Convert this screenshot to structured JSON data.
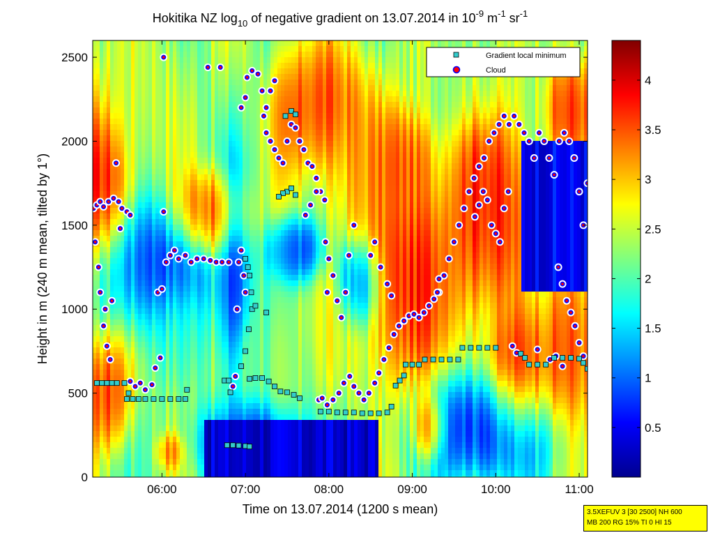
{
  "chart_data": {
    "type": "heatmap",
    "title": {
      "prefix": "Hokitika NZ log",
      "sub": "10",
      "middle": " of negative gradient on 13.07.2014 in 10",
      "exp1": "-9",
      "unit1": " m",
      "exp2": "-1",
      "unit2": " sr",
      "exp3": "-1"
    },
    "xlabel": "Time on 13.07.2014 (1200 s mean)",
    "ylabel": "Height in m (240 m mean, tilted by 1°)",
    "x_ticks": [
      "06:00",
      "07:00",
      "08:00",
      "09:00",
      "10:00",
      "11:00"
    ],
    "x_tick_hours": [
      6,
      7,
      8,
      9,
      10,
      11
    ],
    "xlim_hours": [
      5.17,
      11.1
    ],
    "y_ticks": [
      0,
      500,
      1000,
      1500,
      2000,
      2500
    ],
    "ylim": [
      0,
      2600
    ],
    "colorbar": {
      "ticks": [
        "0.5",
        "1",
        "1.5",
        "2",
        "2.5",
        "3",
        "3.5",
        "4"
      ],
      "tick_values": [
        0.5,
        1,
        1.5,
        2,
        2.5,
        3,
        3.5,
        4
      ],
      "range": [
        0,
        4.4
      ],
      "colormap": "jet"
    },
    "legend": {
      "position": "top-right",
      "entries": [
        {
          "label": "Gradient local minimum",
          "marker": "square",
          "color": "#33cccc"
        },
        {
          "label": "Cloud",
          "marker": "circle",
          "color": "#ff0000"
        }
      ]
    },
    "series": [
      {
        "name": "Gradient local minimum",
        "points": [
          [
            5.22,
            560
          ],
          [
            5.28,
            560
          ],
          [
            5.34,
            560
          ],
          [
            5.4,
            560
          ],
          [
            5.46,
            560
          ],
          [
            5.55,
            560
          ],
          [
            5.58,
            465
          ],
          [
            5.65,
            465
          ],
          [
            5.72,
            465
          ],
          [
            5.8,
            465
          ],
          [
            5.9,
            465
          ],
          [
            6.0,
            465
          ],
          [
            6.1,
            465
          ],
          [
            6.2,
            465
          ],
          [
            6.28,
            465
          ],
          [
            5.6,
            500
          ],
          [
            6.3,
            520
          ],
          [
            6.75,
            575
          ],
          [
            6.8,
            575
          ],
          [
            6.82,
            505
          ],
          [
            7.05,
            585
          ],
          [
            7.12,
            590
          ],
          [
            7.2,
            590
          ],
          [
            7.28,
            570
          ],
          [
            7.35,
            540
          ],
          [
            7.42,
            510
          ],
          [
            7.5,
            505
          ],
          [
            7.58,
            490
          ],
          [
            7.65,
            470
          ],
          [
            6.78,
            190
          ],
          [
            6.85,
            190
          ],
          [
            6.92,
            188
          ],
          [
            7.0,
            185
          ],
          [
            7.05,
            182
          ],
          [
            7.0,
            1300
          ],
          [
            7.03,
            1250
          ],
          [
            7.05,
            1200
          ],
          [
            7.07,
            1100
          ],
          [
            7.04,
            880
          ],
          [
            7.0,
            750
          ],
          [
            6.95,
            660
          ],
          [
            7.08,
            1000
          ],
          [
            7.12,
            1020
          ],
          [
            7.25,
            980
          ],
          [
            7.5,
            1700
          ],
          [
            7.55,
            1720
          ],
          [
            7.6,
            1680
          ],
          [
            7.45,
            1690
          ],
          [
            7.4,
            1670
          ],
          [
            7.48,
            2150
          ],
          [
            7.55,
            2180
          ],
          [
            7.6,
            2160
          ],
          [
            7.9,
            390
          ],
          [
            8.0,
            390
          ],
          [
            8.1,
            385
          ],
          [
            8.2,
            385
          ],
          [
            8.3,
            385
          ],
          [
            8.4,
            380
          ],
          [
            8.5,
            380
          ],
          [
            8.6,
            380
          ],
          [
            8.7,
            385
          ],
          [
            8.75,
            420
          ],
          [
            8.8,
            545
          ],
          [
            8.85,
            575
          ],
          [
            8.9,
            605
          ],
          [
            8.92,
            670
          ],
          [
            9.0,
            670
          ],
          [
            9.08,
            670
          ],
          [
            9.15,
            700
          ],
          [
            9.25,
            700
          ],
          [
            9.35,
            700
          ],
          [
            9.45,
            700
          ],
          [
            9.55,
            700
          ],
          [
            9.6,
            770
          ],
          [
            9.7,
            770
          ],
          [
            9.8,
            770
          ],
          [
            9.9,
            770
          ],
          [
            10.0,
            770
          ],
          [
            10.3,
            735
          ],
          [
            10.35,
            710
          ],
          [
            10.4,
            670
          ],
          [
            10.5,
            670
          ],
          [
            10.6,
            670
          ],
          [
            10.7,
            710
          ],
          [
            10.8,
            710
          ],
          [
            10.9,
            710
          ],
          [
            11.0,
            705
          ],
          [
            11.05,
            680
          ],
          [
            11.1,
            645
          ]
        ]
      },
      {
        "name": "Cloud",
        "points": [
          [
            5.18,
            1600
          ],
          [
            5.22,
            1620
          ],
          [
            5.26,
            1640
          ],
          [
            5.3,
            1610
          ],
          [
            5.36,
            1640
          ],
          [
            5.42,
            1660
          ],
          [
            5.48,
            1640
          ],
          [
            5.52,
            1600
          ],
          [
            5.58,
            1580
          ],
          [
            5.62,
            1560
          ],
          [
            5.2,
            1400
          ],
          [
            5.24,
            1250
          ],
          [
            5.26,
            1100
          ],
          [
            5.3,
            900
          ],
          [
            5.34,
            780
          ],
          [
            5.38,
            700
          ],
          [
            5.32,
            1000
          ],
          [
            5.4,
            1050
          ],
          [
            5.5,
            1480
          ],
          [
            5.45,
            1870
          ],
          [
            5.62,
            570
          ],
          [
            5.68,
            540
          ],
          [
            5.74,
            560
          ],
          [
            5.8,
            520
          ],
          [
            5.88,
            550
          ],
          [
            5.95,
            1100
          ],
          [
            6.0,
            1120
          ],
          [
            6.05,
            1280
          ],
          [
            6.1,
            1320
          ],
          [
            6.15,
            1350
          ],
          [
            6.2,
            1300
          ],
          [
            6.28,
            1320
          ],
          [
            6.35,
            1280
          ],
          [
            6.42,
            1300
          ],
          [
            6.5,
            1300
          ],
          [
            6.58,
            1290
          ],
          [
            6.65,
            1280
          ],
          [
            6.72,
            1280
          ],
          [
            6.8,
            1280
          ],
          [
            6.02,
            1580
          ],
          [
            5.98,
            710
          ],
          [
            5.92,
            650
          ],
          [
            6.02,
            2500
          ],
          [
            6.55,
            2440
          ],
          [
            6.7,
            2440
          ],
          [
            6.9,
            1000
          ],
          [
            6.92,
            1280
          ],
          [
            6.95,
            1350
          ],
          [
            6.98,
            1200
          ],
          [
            7.0,
            1100
          ],
          [
            6.85,
            540
          ],
          [
            6.88,
            600
          ],
          [
            6.95,
            2200
          ],
          [
            7.0,
            2260
          ],
          [
            7.02,
            2380
          ],
          [
            7.08,
            2420
          ],
          [
            7.15,
            2400
          ],
          [
            7.2,
            2300
          ],
          [
            7.22,
            2150
          ],
          [
            7.25,
            2200
          ],
          [
            7.3,
            2300
          ],
          [
            7.35,
            2360
          ],
          [
            7.25,
            2050
          ],
          [
            7.3,
            2000
          ],
          [
            7.35,
            1950
          ],
          [
            7.4,
            1900
          ],
          [
            7.45,
            1870
          ],
          [
            7.5,
            2000
          ],
          [
            7.55,
            2100
          ],
          [
            7.6,
            2080
          ],
          [
            7.65,
            2000
          ],
          [
            7.7,
            1950
          ],
          [
            7.75,
            1870
          ],
          [
            7.8,
            1850
          ],
          [
            7.85,
            1780
          ],
          [
            7.9,
            1700
          ],
          [
            7.95,
            1650
          ],
          [
            7.72,
            1560
          ],
          [
            7.78,
            1620
          ],
          [
            7.85,
            1700
          ],
          [
            7.98,
            1100
          ],
          [
            7.96,
            1400
          ],
          [
            8.0,
            1300
          ],
          [
            8.05,
            1200
          ],
          [
            8.1,
            1050
          ],
          [
            8.15,
            950
          ],
          [
            8.2,
            1100
          ],
          [
            8.24,
            1320
          ],
          [
            7.88,
            460
          ],
          [
            7.92,
            470
          ],
          [
            7.98,
            430
          ],
          [
            8.05,
            460
          ],
          [
            8.12,
            500
          ],
          [
            8.18,
            560
          ],
          [
            8.25,
            600
          ],
          [
            8.3,
            540
          ],
          [
            8.36,
            500
          ],
          [
            8.42,
            460
          ],
          [
            8.48,
            500
          ],
          [
            8.55,
            560
          ],
          [
            8.6,
            620
          ],
          [
            8.66,
            700
          ],
          [
            8.72,
            770
          ],
          [
            8.78,
            850
          ],
          [
            8.84,
            900
          ],
          [
            8.9,
            930
          ],
          [
            8.96,
            960
          ],
          [
            9.02,
            970
          ],
          [
            9.08,
            950
          ],
          [
            9.14,
            980
          ],
          [
            9.2,
            1020
          ],
          [
            9.26,
            1060
          ],
          [
            9.32,
            1100
          ],
          [
            9.38,
            1200
          ],
          [
            9.44,
            1300
          ],
          [
            9.5,
            1400
          ],
          [
            9.56,
            1500
          ],
          [
            9.62,
            1600
          ],
          [
            9.68,
            1700
          ],
          [
            9.74,
            1780
          ],
          [
            9.8,
            1850
          ],
          [
            9.86,
            1900
          ],
          [
            9.92,
            2000
          ],
          [
            9.98,
            2050
          ],
          [
            10.04,
            2100
          ],
          [
            10.1,
            2150
          ],
          [
            10.16,
            2100
          ],
          [
            10.22,
            2150
          ],
          [
            10.28,
            2100
          ],
          [
            10.34,
            2050
          ],
          [
            10.4,
            2000
          ],
          [
            10.46,
            1900
          ],
          [
            10.52,
            2050
          ],
          [
            10.58,
            2000
          ],
          [
            10.64,
            1900
          ],
          [
            10.7,
            1800
          ],
          [
            10.76,
            2000
          ],
          [
            10.82,
            2050
          ],
          [
            10.88,
            2000
          ],
          [
            10.94,
            1900
          ],
          [
            11.0,
            1700
          ],
          [
            11.05,
            1500
          ],
          [
            11.1,
            1750
          ],
          [
            9.75,
            1550
          ],
          [
            9.8,
            1620
          ],
          [
            9.85,
            1700
          ],
          [
            9.9,
            1650
          ],
          [
            9.95,
            1500
          ],
          [
            10.0,
            1450
          ],
          [
            10.05,
            1400
          ],
          [
            10.1,
            1600
          ],
          [
            10.15,
            1700
          ],
          [
            10.75,
            1250
          ],
          [
            10.8,
            1150
          ],
          [
            10.85,
            1050
          ],
          [
            10.9,
            980
          ],
          [
            10.95,
            900
          ],
          [
            11.0,
            800
          ],
          [
            11.05,
            720
          ],
          [
            10.8,
            660
          ],
          [
            10.72,
            720
          ],
          [
            10.65,
            700
          ],
          [
            8.5,
            1320
          ],
          [
            8.55,
            1400
          ],
          [
            8.62,
            1250
          ],
          [
            8.7,
            1150
          ],
          [
            8.75,
            1080
          ],
          [
            9.3,
            1100
          ],
          [
            9.32,
            1180
          ],
          [
            8.3,
            1500
          ],
          [
            10.2,
            780
          ],
          [
            10.25,
            740
          ],
          [
            10.5,
            760
          ]
        ]
      }
    ]
  },
  "info_box": {
    "line1": "3.5XEFUV 3 [30 2500] NH 600",
    "line2": "MB 200 RG 15% TI 0 HI 15"
  }
}
